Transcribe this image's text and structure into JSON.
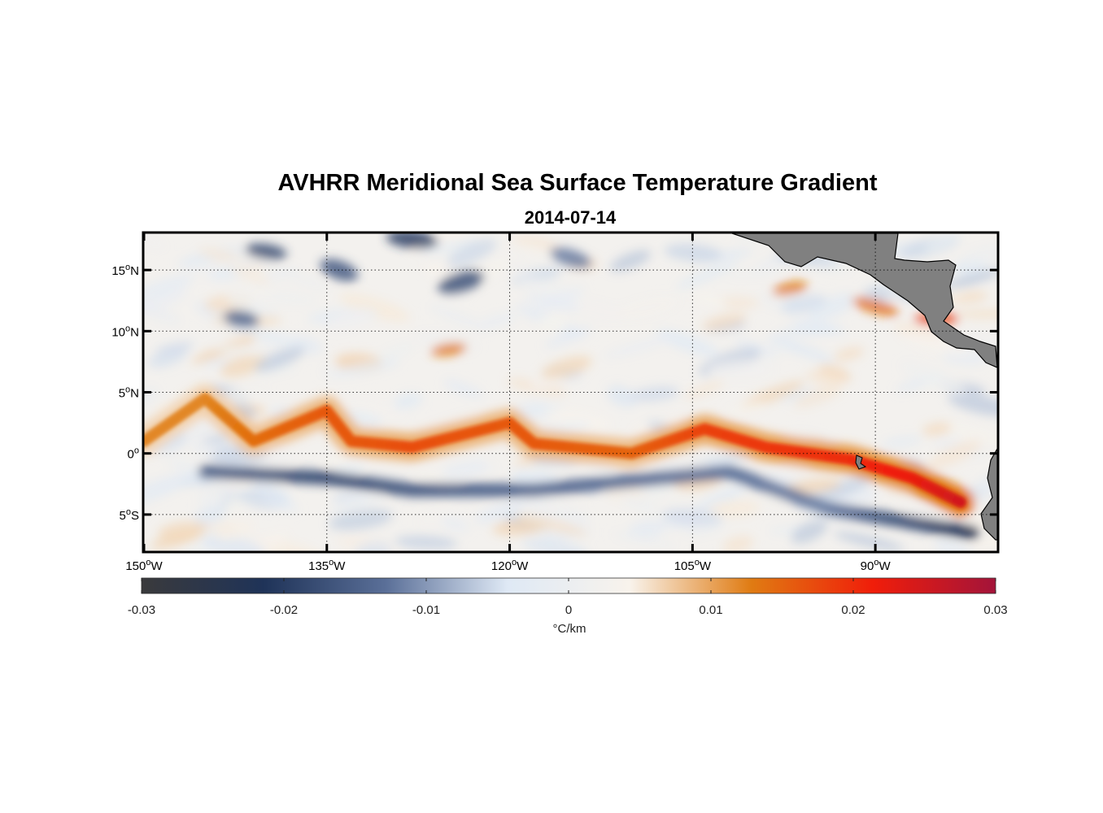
{
  "chart_data": {
    "type": "heatmap",
    "title": "AVHRR Meridional Sea Surface Temperature Gradient",
    "subtitle": "2014-07-14",
    "x_ticks": [
      {
        "deg": "150",
        "dir": "W",
        "lon": -150
      },
      {
        "deg": "135",
        "dir": "W",
        "lon": -135
      },
      {
        "deg": "120",
        "dir": "W",
        "lon": -120
      },
      {
        "deg": "105",
        "dir": "W",
        "lon": -105
      },
      {
        "deg": "90",
        "dir": "W",
        "lon": -90
      }
    ],
    "y_ticks": [
      {
        "deg": "15",
        "dir": "N",
        "lat": 15
      },
      {
        "deg": "10",
        "dir": "N",
        "lat": 10
      },
      {
        "deg": "5",
        "dir": "N",
        "lat": 5
      },
      {
        "deg": "0",
        "dir": "",
        "lat": 0
      },
      {
        "deg": "5",
        "dir": "S",
        "lat": -5
      }
    ],
    "degree_symbol": "o",
    "xlim": [
      -150,
      -80
    ],
    "ylim": [
      -8,
      18
    ],
    "grid": true,
    "colorbar": {
      "range": [
        -0.03,
        0.03
      ],
      "ticks": [
        "-0.03",
        "-0.02",
        "-0.01",
        "0",
        "0.01",
        "0.02",
        "0.03"
      ],
      "tick_values": [
        -0.03,
        -0.02,
        -0.01,
        0,
        0.01,
        0.02,
        0.03
      ],
      "label": "°C/km",
      "colors": [
        "#3a3a3c",
        "#1f3358",
        "#5a6f98",
        "#dfe9f5",
        "#f8f3ec",
        "#e07b12",
        "#f01d0a",
        "#a3143a"
      ]
    },
    "features": {
      "equatorial_front": [
        {
          "lon": -150,
          "lat": 1.0,
          "value": 0.012
        },
        {
          "lon": -145,
          "lat": 4.5,
          "value": 0.012
        },
        {
          "lon": -141,
          "lat": 1.0,
          "value": 0.014
        },
        {
          "lon": -135,
          "lat": 3.5,
          "value": 0.016
        },
        {
          "lon": -133,
          "lat": 1.0,
          "value": 0.016
        },
        {
          "lon": -128,
          "lat": 0.5,
          "value": 0.017
        },
        {
          "lon": -120,
          "lat": 2.5,
          "value": 0.016
        },
        {
          "lon": -118,
          "lat": 0.8,
          "value": 0.016
        },
        {
          "lon": -110,
          "lat": 0.0,
          "value": 0.015
        },
        {
          "lon": -104,
          "lat": 2.0,
          "value": 0.018
        },
        {
          "lon": -99,
          "lat": 0.5,
          "value": 0.019
        },
        {
          "lon": -92,
          "lat": -0.5,
          "value": 0.02
        },
        {
          "lon": -87,
          "lat": -2.0,
          "value": 0.022
        },
        {
          "lon": -83,
          "lat": -4.0,
          "value": 0.025
        }
      ],
      "southern_cold_bands": [
        {
          "lon": -145,
          "lat": -1.5,
          "value": -0.015
        },
        {
          "lon": -135,
          "lat": -2.0,
          "value": -0.018
        },
        {
          "lon": -128,
          "lat": -3.0,
          "value": -0.016
        },
        {
          "lon": -118,
          "lat": -3.0,
          "value": -0.014
        },
        {
          "lon": -102,
          "lat": -1.5,
          "value": -0.013
        },
        {
          "lon": -94,
          "lat": -4.5,
          "value": -0.012
        },
        {
          "lon": -82,
          "lat": -6.5,
          "value": -0.022
        }
      ],
      "northern_cold_patches": [
        {
          "lon": -140,
          "lat": 16.5,
          "value": -0.018
        },
        {
          "lon": -134,
          "lat": 15.0,
          "value": -0.016
        },
        {
          "lon": -128,
          "lat": 17.5,
          "value": -0.02
        },
        {
          "lon": -124,
          "lat": 14.0,
          "value": -0.017
        },
        {
          "lon": -142,
          "lat": 11.0,
          "value": -0.014
        },
        {
          "lon": -115,
          "lat": 16.0,
          "value": -0.012
        }
      ],
      "northern_warm_patches": [
        {
          "lon": -97,
          "lat": 13.5,
          "value": 0.013
        },
        {
          "lon": -90,
          "lat": 12.0,
          "value": 0.014
        },
        {
          "lon": -85,
          "lat": 11.0,
          "value": 0.018
        },
        {
          "lon": -125,
          "lat": 8.5,
          "value": 0.013
        }
      ]
    },
    "land_color": "#808080"
  }
}
